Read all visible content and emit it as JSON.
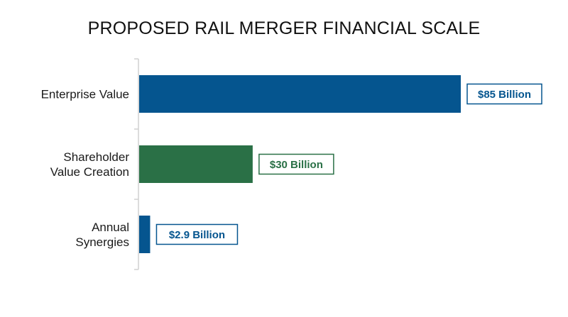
{
  "colors": {
    "blue": "#05558f",
    "green": "#2a7046",
    "axis": "#d0d0d0",
    "label_bg": "#ffffff"
  },
  "chart_data": {
    "type": "bar",
    "orientation": "horizontal",
    "title": "PROPOSED RAIL MERGER FINANCIAL SCALE",
    "xlabel": "",
    "ylabel": "",
    "xlim": [
      0,
      100
    ],
    "grid": false,
    "legend": "none",
    "categories": [
      [
        "Enterprise Value"
      ],
      [
        "Shareholder",
        "Value Creation"
      ],
      [
        "Annual",
        "Synergies"
      ]
    ],
    "values": [
      85,
      30,
      2.9
    ],
    "value_labels": [
      "$85 Billion",
      "$30 Billion",
      "$2.9 Billion"
    ],
    "bar_colors": [
      "#05558f",
      "#2a7046",
      "#05558f"
    ]
  }
}
